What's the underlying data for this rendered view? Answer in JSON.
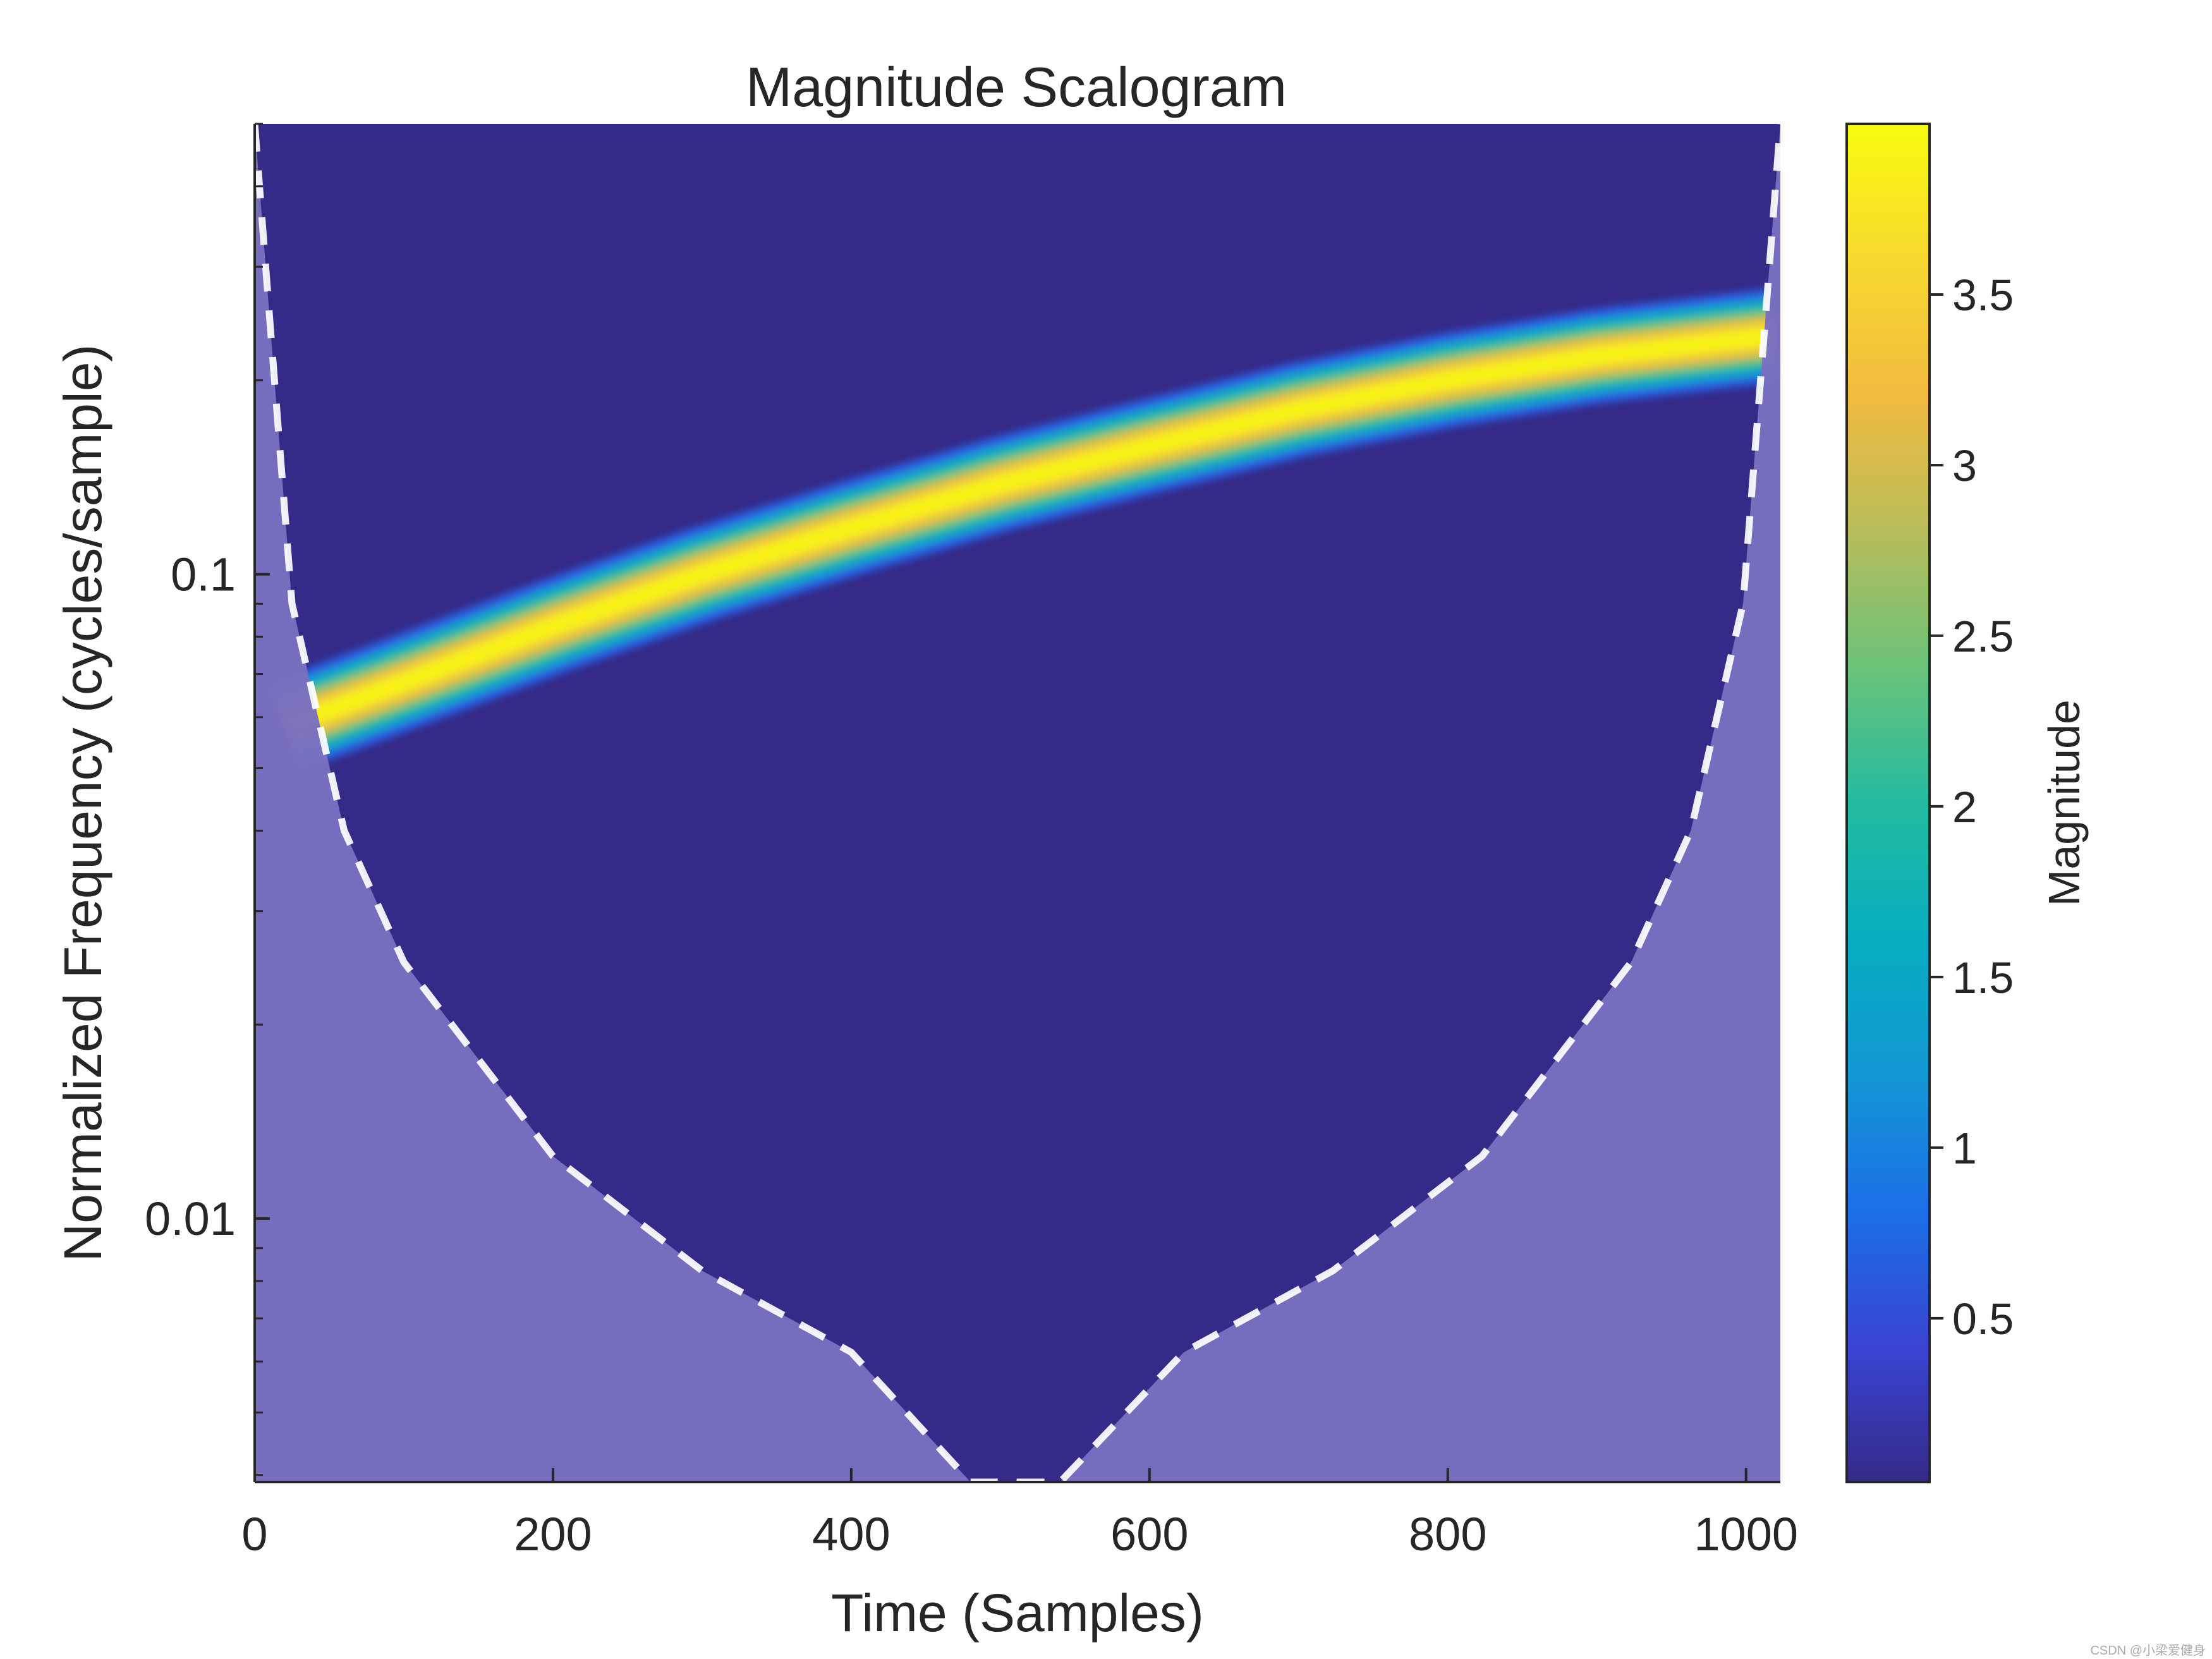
{
  "chart_data": {
    "type": "heatmap",
    "title": "Magnitude Scalogram",
    "xlabel": "Time (Samples)",
    "ylabel": "Normalized Frequency  (cycles/sample)",
    "xlim": [
      0,
      1023
    ],
    "ylim": [
      0.0039,
      0.5
    ],
    "yscale": "log",
    "xticks": [
      0,
      200,
      400,
      600,
      800,
      1000
    ],
    "xtick_labels": [
      "0",
      "200",
      "400",
      "600",
      "800",
      "1000"
    ],
    "yticks": [
      0.01,
      0.1
    ],
    "ytick_labels": [
      "0.01",
      "0.1"
    ],
    "colorbar": {
      "label": "Magnitude",
      "range": [
        0.02,
        4.0
      ],
      "ticks": [
        0.5,
        1,
        1.5,
        2,
        2.5,
        3,
        3.5
      ],
      "tick_labels": [
        "0.5",
        "1",
        "1.5",
        "2",
        "2.5",
        "3",
        "3.5"
      ],
      "colormap": "parula"
    },
    "ridge": {
      "description": "chirp ridge",
      "points": [
        {
          "x": 20,
          "y": 0.058
        },
        {
          "x": 100,
          "y": 0.068
        },
        {
          "x": 200,
          "y": 0.083
        },
        {
          "x": 300,
          "y": 0.1
        },
        {
          "x": 400,
          "y": 0.118
        },
        {
          "x": 500,
          "y": 0.138
        },
        {
          "x": 600,
          "y": 0.158
        },
        {
          "x": 700,
          "y": 0.18
        },
        {
          "x": 800,
          "y": 0.2
        },
        {
          "x": 900,
          "y": 0.218
        },
        {
          "x": 1000,
          "y": 0.232
        },
        {
          "x": 1020,
          "y": 0.235
        }
      ],
      "peak_magnitude": 3.9
    },
    "cone_of_influence": {
      "style": "white dashed",
      "points": [
        {
          "x": 0,
          "y": 0.5
        },
        {
          "x": 10,
          "y": 0.25
        },
        {
          "x": 25,
          "y": 0.09
        },
        {
          "x": 60,
          "y": 0.04
        },
        {
          "x": 100,
          "y": 0.025
        },
        {
          "x": 200,
          "y": 0.0125
        },
        {
          "x": 300,
          "y": 0.0083
        },
        {
          "x": 400,
          "y": 0.0062
        },
        {
          "x": 480,
          "y": 0.0039
        },
        {
          "x": 540,
          "y": 0.0039
        },
        {
          "x": 623,
          "y": 0.0062
        },
        {
          "x": 723,
          "y": 0.0083
        },
        {
          "x": 823,
          "y": 0.0125
        },
        {
          "x": 923,
          "y": 0.025
        },
        {
          "x": 963,
          "y": 0.04
        },
        {
          "x": 998,
          "y": 0.09
        },
        {
          "x": 1013,
          "y": 0.25
        },
        {
          "x": 1023,
          "y": 0.5
        }
      ]
    },
    "colors": {
      "background_magnitude": "#352A87",
      "coi_shade": "#7A6FC0",
      "coi_line": "#ffffff"
    }
  },
  "watermark": "CSDN @小梁爱健身"
}
